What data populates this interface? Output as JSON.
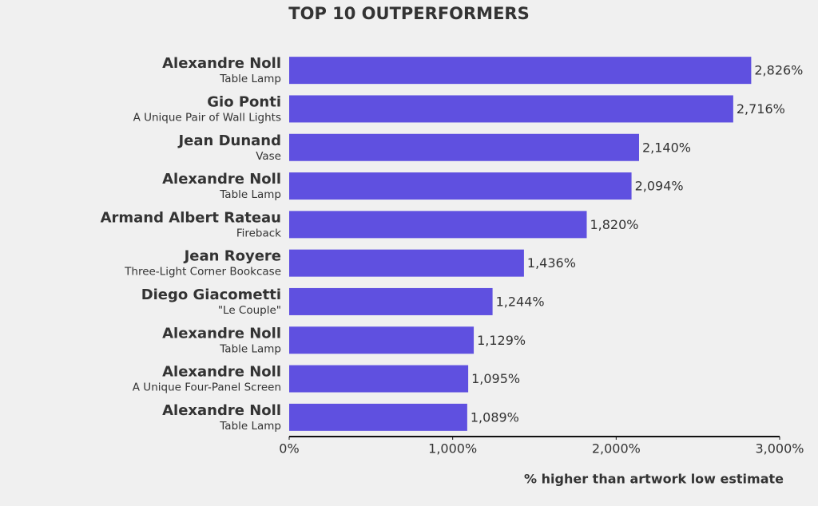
{
  "chart_data": {
    "type": "bar",
    "orientation": "horizontal",
    "title": "TOP 10 OUTPERFORMERS",
    "categories": [
      "Alexandre Noll",
      "Gio Ponti",
      "Jean Dunand",
      "Alexandre Noll",
      "Armand Albert Rateau",
      "Jean Royere",
      "Diego Giacometti",
      "Alexandre Noll",
      "Alexandre Noll",
      "Alexandre Noll"
    ],
    "category_subtitles": [
      "Table Lamp",
      "A Unique Pair of Wall Lights",
      "Vase",
      "Table Lamp",
      "Fireback",
      "Three-Light Corner Bookcase",
      "\"Le Couple\"",
      "Table Lamp",
      "A Unique Four-Panel Screen",
      "Table Lamp"
    ],
    "values": [
      2826,
      2716,
      2140,
      2094,
      1820,
      1436,
      1244,
      1129,
      1095,
      1089
    ],
    "value_labels": [
      "2,826%",
      "2,716%",
      "2,140%",
      "2,094%",
      "1,820%",
      "1,436%",
      "1,244%",
      "1,129%",
      "1,095%",
      "1,089%"
    ],
    "color": "#5f50e0",
    "xlim": [
      0,
      3000
    ],
    "xticks": [
      {
        "value": 0,
        "label": "0%"
      },
      {
        "value": 1000,
        "label": "1,000%"
      },
      {
        "value": 2000,
        "label": "2,000%"
      },
      {
        "value": 3000,
        "label": "3,000%"
      }
    ],
    "x_label": "% higher than artwork low estimate"
  }
}
